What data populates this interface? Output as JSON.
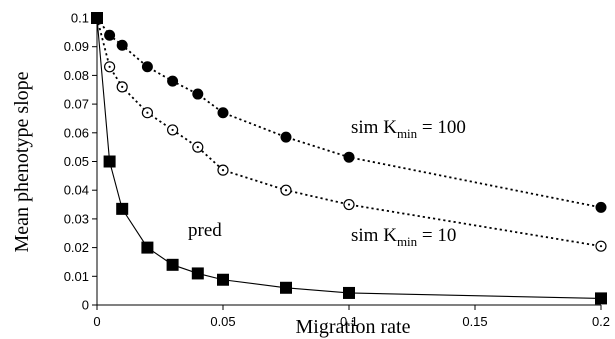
{
  "chart_data": {
    "type": "line",
    "xlabel": "Migration rate",
    "ylabel": "Mean phenotype slope",
    "xlim": [
      0,
      0.2
    ],
    "ylim": [
      0,
      0.1
    ],
    "x_ticks": [
      0,
      0.05,
      0.1,
      0.15,
      0.2
    ],
    "x_tick_labels": [
      "0",
      "0.05",
      "0.1",
      "0.15",
      "0.2"
    ],
    "y_ticks": [
      0,
      0.01,
      0.02,
      0.03,
      0.04,
      0.05,
      0.06,
      0.07,
      0.08,
      0.09,
      0.1
    ],
    "y_tick_labels": [
      "0",
      "0.01",
      "0.02",
      "0.03",
      "0.04",
      "0.05",
      "0.06",
      "0.07",
      "0.08",
      "0.09",
      "0.1"
    ],
    "grid": false,
    "legend": "none",
    "series": [
      {
        "label_main": "sim K",
        "label_sub": "min",
        "label_value": " = 100",
        "marker": "filled-circle",
        "line_style": "dotted",
        "color": "#000000",
        "x": [
          0,
          0.005,
          0.01,
          0.02,
          0.03,
          0.04,
          0.05,
          0.075,
          0.1,
          0.2
        ],
        "values": [
          0.1,
          0.094,
          0.0905,
          0.083,
          0.078,
          0.0735,
          0.067,
          0.0585,
          0.0515,
          0.034
        ]
      },
      {
        "label_main": "sim K",
        "label_sub": "min",
        "label_value": " = 10",
        "marker": "open-circle",
        "line_style": "dotted",
        "color": "#000000",
        "x": [
          0,
          0.005,
          0.01,
          0.02,
          0.03,
          0.04,
          0.05,
          0.075,
          0.1,
          0.2
        ],
        "values": [
          0.1,
          0.083,
          0.076,
          0.067,
          0.061,
          0.055,
          0.047,
          0.04,
          0.035,
          0.0205
        ]
      },
      {
        "label_main": "pred",
        "marker": "filled-square",
        "line_style": "solid",
        "color": "#000000",
        "x": [
          0,
          0.005,
          0.01,
          0.02,
          0.03,
          0.04,
          0.05,
          0.075,
          0.1,
          0.2
        ],
        "values": [
          0.1,
          0.05,
          0.0335,
          0.02,
          0.014,
          0.011,
          0.0088,
          0.006,
          0.0042,
          0.0023
        ]
      }
    ]
  }
}
